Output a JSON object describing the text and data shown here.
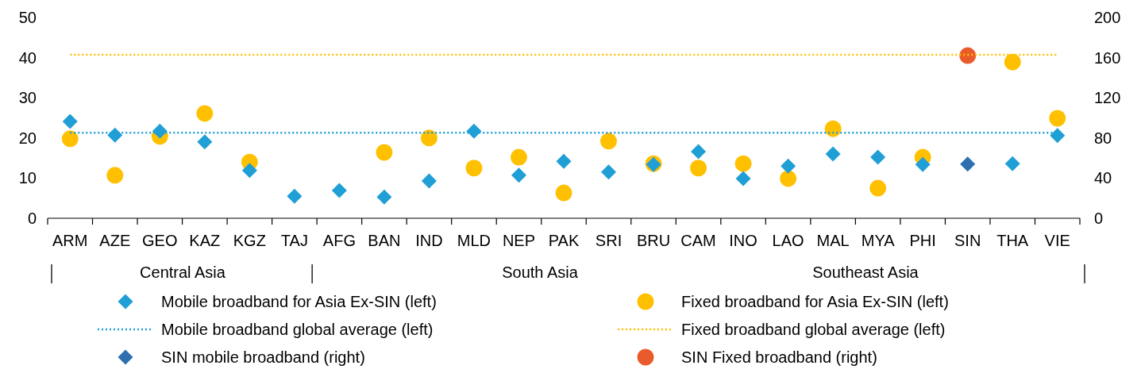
{
  "chart_data": {
    "type": "scatter",
    "categories": [
      "ARM",
      "AZE",
      "GEO",
      "KAZ",
      "KGZ",
      "TAJ",
      "AFG",
      "BAN",
      "IND",
      "MLD",
      "NEP",
      "PAK",
      "SRI",
      "BRU",
      "CAM",
      "INO",
      "LAO",
      "MAL",
      "MYA",
      "PHI",
      "SIN",
      "THA",
      "VIE"
    ],
    "ylim": [
      0,
      50
    ],
    "yticks": [
      0,
      10,
      20,
      30,
      40,
      50
    ],
    "y2lim": [
      0,
      200
    ],
    "y2ticks": [
      0,
      40,
      80,
      120,
      160,
      200
    ],
    "grid": false,
    "legend": "bottom",
    "series": [
      {
        "name": "Mobile broadband for Asia Ex-SIN (left)",
        "marker": "diamond",
        "color": "#1f9fd5",
        "values": [
          24.1,
          20.7,
          21.7,
          19.0,
          11.9,
          5.5,
          6.9,
          5.3,
          9.3,
          21.7,
          10.7,
          14.2,
          11.5,
          13.4,
          16.6,
          9.9,
          13.0,
          16.0,
          15.2,
          13.4,
          null,
          13.6,
          20.6
        ]
      },
      {
        "name": "Fixed broadband for Asia Ex-SIN (left)",
        "marker": "circle",
        "color": "#ffc000",
        "values": [
          19.8,
          10.7,
          20.4,
          26.1,
          14.0,
          null,
          null,
          16.4,
          20.0,
          12.5,
          15.2,
          6.3,
          19.2,
          13.6,
          12.5,
          13.6,
          9.9,
          22.3,
          7.5,
          15.2,
          null,
          38.9,
          24.9
        ]
      },
      {
        "name": "Mobile broadband global average (left)",
        "type": "line",
        "line_style": "dotted",
        "color": "#1f9fd5",
        "values": [
          21.3,
          21.3,
          21.3,
          21.3,
          21.3,
          21.3,
          21.3,
          21.3,
          21.3,
          21.3,
          21.3,
          21.3,
          21.3,
          21.3,
          21.3,
          21.3,
          21.3,
          21.3,
          21.3,
          21.3,
          21.3,
          21.3,
          21.3
        ]
      },
      {
        "name": "Fixed broadband global average (left)",
        "type": "line",
        "line_style": "dotted",
        "color": "#ffc000",
        "values": [
          40.7,
          40.7,
          40.7,
          40.7,
          40.7,
          40.7,
          40.7,
          40.7,
          40.7,
          40.7,
          40.7,
          40.7,
          40.7,
          40.7,
          40.7,
          40.7,
          40.7,
          40.7,
          40.7,
          40.7,
          40.7,
          40.7,
          40.7
        ]
      },
      {
        "name": "SIN mobile broadband (right)",
        "marker": "diamond",
        "axis": "y2",
        "color": "#2e6fb0",
        "values": [
          null,
          null,
          null,
          null,
          null,
          null,
          null,
          null,
          null,
          null,
          null,
          null,
          null,
          null,
          null,
          null,
          null,
          null,
          null,
          null,
          54,
          null,
          null
        ]
      },
      {
        "name": "SIN Fixed broadband (right)",
        "marker": "circle",
        "axis": "y2",
        "color": "#ea5b2b",
        "values": [
          null,
          null,
          null,
          null,
          null,
          null,
          null,
          null,
          null,
          null,
          null,
          null,
          null,
          null,
          null,
          null,
          null,
          null,
          null,
          null,
          162,
          null,
          null
        ]
      }
    ],
    "annotations": [
      "Central Asia",
      "South Asia",
      "Southeast Asia"
    ]
  }
}
